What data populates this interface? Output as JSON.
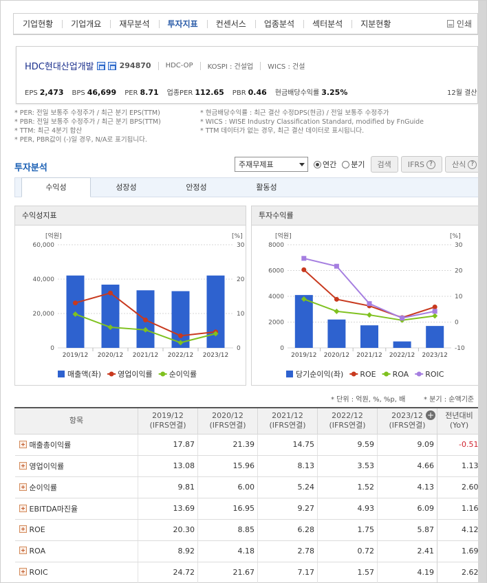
{
  "nav": {
    "tabs": [
      "기업현황",
      "기업개요",
      "재무분석",
      "투자지표",
      "컨센서스",
      "업종분석",
      "섹터분석",
      "지분현황"
    ],
    "active_tab": "투자지표",
    "print_label": "인쇄"
  },
  "company": {
    "name": "HDC현대산업개발",
    "code": "294870",
    "ticker": "HDC-OP",
    "kospi": "KOSPI : 건설업",
    "wics": "WICS : 건설",
    "metrics": [
      {
        "label": "EPS",
        "value": "2,473"
      },
      {
        "label": "BPS",
        "value": "46,699"
      },
      {
        "label": "PER",
        "value": "8.71"
      },
      {
        "label": "업종PER",
        "value": "112.65"
      },
      {
        "label": "PBR",
        "value": "0.46"
      },
      {
        "label": "현금배당수익률",
        "value": "3.25%"
      }
    ],
    "settlement": "12월 결산"
  },
  "notes": {
    "left": [
      "* PER: 전일 보통주 수정주가 / 최근 분기 EPS(TTM)",
      "* PBR: 전일 보통주 수정주가 / 최근 분기 BPS(TTM)",
      "* TTM: 최근 4분기 합산",
      "* PER, PBR값이 (-)일 경우, N/A로 표기됩니다."
    ],
    "right": [
      "* 현금배당수익률 : 최근 결산 수정DPS(현금) / 전일 보통주 수정주가",
      "* WICS : WISE Industry Classification Standard, modified by FnGuide",
      "* TTM 데이터가 없는 경우, 최근 결산 데이터로 표시됩니다."
    ]
  },
  "section": {
    "title": "투자분석",
    "select_value": "주재무제표",
    "radio_annual": "연간",
    "radio_quarter": "분기",
    "search_label": "검색",
    "ifrs_label": "IFRS",
    "formula_label": "산식"
  },
  "subtabs": [
    "수익성",
    "성장성",
    "안정성",
    "활동성"
  ],
  "active_subtab": "수익성",
  "chart_data": [
    {
      "type": "bar+line",
      "title": "수익성지표",
      "categories": [
        "2019/12",
        "2020/12",
        "2021/12",
        "2022/12",
        "2023/12"
      ],
      "left_axis": {
        "unit": "[억원]",
        "ticks": [
          "0",
          "20,000",
          "40,000",
          "60,000"
        ],
        "range": [
          0,
          60000
        ]
      },
      "right_axis": {
        "unit": "[%]",
        "ticks": [
          "0",
          "10",
          "20",
          "30"
        ],
        "range": [
          0,
          30
        ]
      },
      "series": [
        {
          "name": "매출액(좌)",
          "type": "bar",
          "axis": "left",
          "color": "#2e62cf",
          "values": [
            42100,
            36800,
            33500,
            33000,
            42100
          ]
        },
        {
          "name": "영업이익률",
          "type": "line",
          "axis": "right",
          "color": "#c8391e",
          "values": [
            13.08,
            15.96,
            8.13,
            3.53,
            4.66
          ]
        },
        {
          "name": "순이익률",
          "type": "line",
          "axis": "right",
          "color": "#7fc11f",
          "values": [
            9.81,
            6.0,
            5.24,
            1.52,
            4.13
          ]
        }
      ]
    },
    {
      "type": "bar+line",
      "title": "투자수익률",
      "categories": [
        "2019/12",
        "2020/12",
        "2021/12",
        "2022/12",
        "2023/12"
      ],
      "left_axis": {
        "unit": "[억원]",
        "ticks": [
          "0",
          "2000",
          "4000",
          "6000",
          "8000"
        ],
        "range": [
          0,
          8000
        ]
      },
      "right_axis": {
        "unit": "[%]",
        "ticks": [
          "-10",
          "0",
          "10",
          "20",
          "30"
        ],
        "range": [
          -10,
          30
        ]
      },
      "series": [
        {
          "name": "당기순이익(좌)",
          "type": "bar",
          "axis": "left",
          "color": "#2e62cf",
          "values": [
            4100,
            2200,
            1750,
            500,
            1700
          ]
        },
        {
          "name": "ROE",
          "type": "line",
          "axis": "right",
          "color": "#c8391e",
          "values": [
            20.3,
            8.85,
            6.28,
            1.75,
            5.87
          ]
        },
        {
          "name": "ROA",
          "type": "line",
          "axis": "right",
          "color": "#7fc11f",
          "values": [
            8.92,
            4.18,
            2.78,
            0.72,
            2.41
          ]
        },
        {
          "name": "ROIC",
          "type": "line",
          "axis": "right",
          "color": "#a57ee0",
          "values": [
            24.72,
            21.67,
            7.17,
            1.57,
            4.19
          ]
        }
      ]
    }
  ],
  "table": {
    "unit_note": "* 단위 : 억원, %, %p, 배",
    "period_note": "* 분기 : 순액기준",
    "headers": {
      "item": "항목",
      "years": [
        {
          "year": "2019/12",
          "basis": "(IFRS연결)"
        },
        {
          "year": "2020/12",
          "basis": "(IFRS연결)"
        },
        {
          "year": "2021/12",
          "basis": "(IFRS연결)"
        },
        {
          "year": "2022/12",
          "basis": "(IFRS연결)"
        },
        {
          "year": "2023/12",
          "basis": "(IFRS연결)"
        }
      ],
      "yoy_line1": "전년대비",
      "yoy_line2": "(YoY)"
    },
    "rows": [
      {
        "item": "매출총이익률",
        "values": [
          "17.87",
          "21.39",
          "14.75",
          "9.59",
          "9.09"
        ],
        "yoy": "-0.51",
        "yoy_negative": true
      },
      {
        "item": "영업이익률",
        "values": [
          "13.08",
          "15.96",
          "8.13",
          "3.53",
          "4.66"
        ],
        "yoy": "1.13",
        "yoy_negative": false
      },
      {
        "item": "순이익률",
        "values": [
          "9.81",
          "6.00",
          "5.24",
          "1.52",
          "4.13"
        ],
        "yoy": "2.60",
        "yoy_negative": false
      },
      {
        "item": "EBITDA마진율",
        "values": [
          "13.69",
          "16.95",
          "9.27",
          "4.93",
          "6.09"
        ],
        "yoy": "1.16",
        "yoy_negative": false
      },
      {
        "item": "ROE",
        "values": [
          "20.30",
          "8.85",
          "6.28",
          "1.75",
          "5.87"
        ],
        "yoy": "4.12",
        "yoy_negative": false
      },
      {
        "item": "ROA",
        "values": [
          "8.92",
          "4.18",
          "2.78",
          "0.72",
          "2.41"
        ],
        "yoy": "1.69",
        "yoy_negative": false
      },
      {
        "item": "ROIC",
        "values": [
          "24.72",
          "21.67",
          "7.17",
          "1.57",
          "4.19"
        ],
        "yoy": "2.62",
        "yoy_negative": false
      }
    ]
  }
}
